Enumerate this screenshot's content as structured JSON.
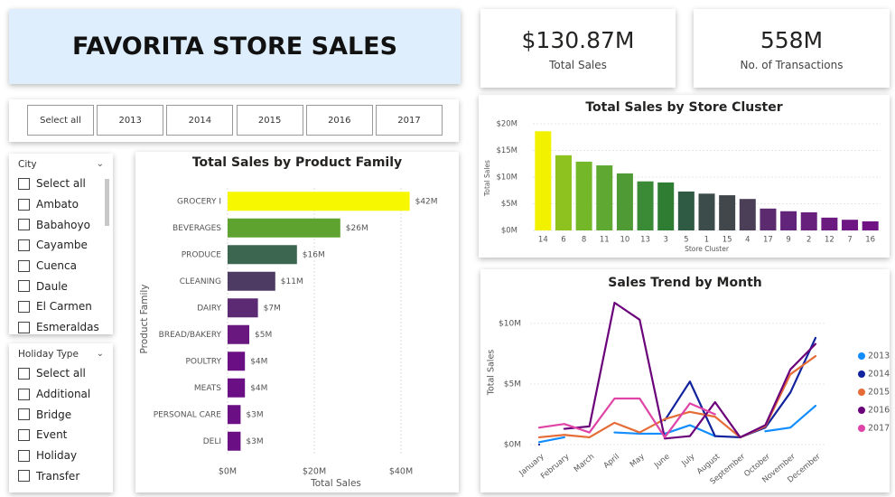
{
  "header": {
    "title": "FAVORITA STORE SALES"
  },
  "kpis": [
    {
      "value": "$130.87M",
      "label": "Total Sales"
    },
    {
      "value": "558M",
      "label": "No. of Transactions"
    }
  ],
  "year_slicer": {
    "options": [
      "Select all",
      "2013",
      "2014",
      "2015",
      "2016",
      "2017"
    ]
  },
  "city_slicer": {
    "title": "City",
    "options": [
      "Select all",
      "Ambato",
      "Babahoyo",
      "Cayambe",
      "Cuenca",
      "Daule",
      "El Carmen",
      "Esmeraldas"
    ]
  },
  "holiday_slicer": {
    "title": "Holiday Type",
    "options": [
      "Select all",
      "Additional",
      "Bridge",
      "Event",
      "Holiday",
      "Transfer"
    ]
  },
  "chart_data": [
    {
      "type": "hbar",
      "title": "Total Sales by Product Family",
      "x_label": "Total Sales",
      "y_label": "Product Family",
      "categories": [
        "GROCERY I",
        "BEVERAGES",
        "PRODUCE",
        "CLEANING",
        "DAIRY",
        "BREAD/BAKERY",
        "POULTRY",
        "MEATS",
        "PERSONAL CARE",
        "DELI"
      ],
      "values": [
        42,
        26,
        16,
        11,
        7,
        5,
        4,
        4,
        3,
        3
      ],
      "value_labels": [
        "$42M",
        "$26M",
        "$16M",
        "$11M",
        "$7M",
        "$5M",
        "$4M",
        "$4M",
        "$3M",
        "$3M"
      ],
      "colors": [
        "#f7f700",
        "#5ea32f",
        "#3d6650",
        "#4e3b63",
        "#5c2a73",
        "#68187f",
        "#6a1084",
        "#6a1084",
        "#6a1084",
        "#6a1084"
      ],
      "xlim": [
        0,
        45
      ],
      "xticks": [
        {
          "value": 0,
          "label": "$0M"
        },
        {
          "value": 20,
          "label": "$20M"
        },
        {
          "value": 40,
          "label": "$40M"
        }
      ],
      "grid": true
    },
    {
      "type": "bar",
      "title": "Total Sales by Store Cluster",
      "x_label": "Store Cluster",
      "y_label": "Total Sales",
      "categories": [
        "14",
        "6",
        "8",
        "11",
        "10",
        "13",
        "3",
        "5",
        "1",
        "15",
        "4",
        "17",
        "9",
        "2",
        "12",
        "7",
        "16"
      ],
      "values": [
        18.6,
        14.1,
        12.9,
        12.2,
        10.7,
        9.2,
        9.0,
        7.3,
        6.9,
        6.6,
        5.9,
        4.1,
        3.6,
        3.4,
        2.4,
        2.0,
        1.7
      ],
      "colors": [
        "#f2f200",
        "#8dc21f",
        "#74b82a",
        "#5fa832",
        "#4f9a34",
        "#3a8a36",
        "#2e7d32",
        "#2f5a44",
        "#3b4c4a",
        "#41474b",
        "#4a3f57",
        "#5c2a6e",
        "#62237a",
        "#67217d",
        "#6b1a80",
        "#6e1683",
        "#701283"
      ],
      "ylim": [
        0,
        20
      ],
      "yticks": [
        {
          "value": 0,
          "label": "$0M"
        },
        {
          "value": 5,
          "label": "$5M"
        },
        {
          "value": 10,
          "label": "$10M"
        },
        {
          "value": 15,
          "label": "$15M"
        },
        {
          "value": 20,
          "label": "$20M"
        }
      ],
      "grid": true
    },
    {
      "type": "line",
      "title": "Sales Trend by Month",
      "y_label": "Total Sales",
      "categories": [
        "January",
        "February",
        "March",
        "April",
        "May",
        "June",
        "July",
        "August",
        "September",
        "October",
        "November",
        "December"
      ],
      "series": [
        {
          "name": "2013",
          "color": "#118dff",
          "values": [
            0.2,
            0.6,
            null,
            1.0,
            0.9,
            0.9,
            1.6,
            0.7,
            null,
            1.1,
            1.4,
            3.2
          ]
        },
        {
          "name": "2014",
          "color": "#12239e",
          "values": [
            0.0,
            null,
            null,
            null,
            null,
            2.0,
            5.2,
            0.7,
            0.6,
            1.4,
            4.3,
            8.8
          ]
        },
        {
          "name": "2015",
          "color": "#e66c37",
          "values": [
            0.6,
            0.8,
            0.6,
            1.8,
            1.0,
            2.1,
            2.7,
            2.3,
            0.6,
            1.5,
            5.8,
            7.3
          ]
        },
        {
          "name": "2016",
          "color": "#6b007b",
          "values": [
            null,
            1.3,
            1.5,
            11.7,
            10.3,
            0.5,
            0.7,
            3.5,
            0.6,
            1.6,
            6.2,
            8.3
          ]
        },
        {
          "name": "2017",
          "color": "#e044a7",
          "values": [
            1.4,
            1.7,
            1.0,
            3.8,
            3.8,
            0.6,
            3.4,
            2.5,
            null,
            null,
            null,
            null
          ]
        }
      ],
      "ylim": [
        0,
        12
      ],
      "yticks": [
        {
          "value": 0,
          "label": "$0M"
        },
        {
          "value": 5,
          "label": "$5M"
        },
        {
          "value": 10,
          "label": "$10M"
        }
      ],
      "grid": true,
      "legend": "right"
    }
  ]
}
